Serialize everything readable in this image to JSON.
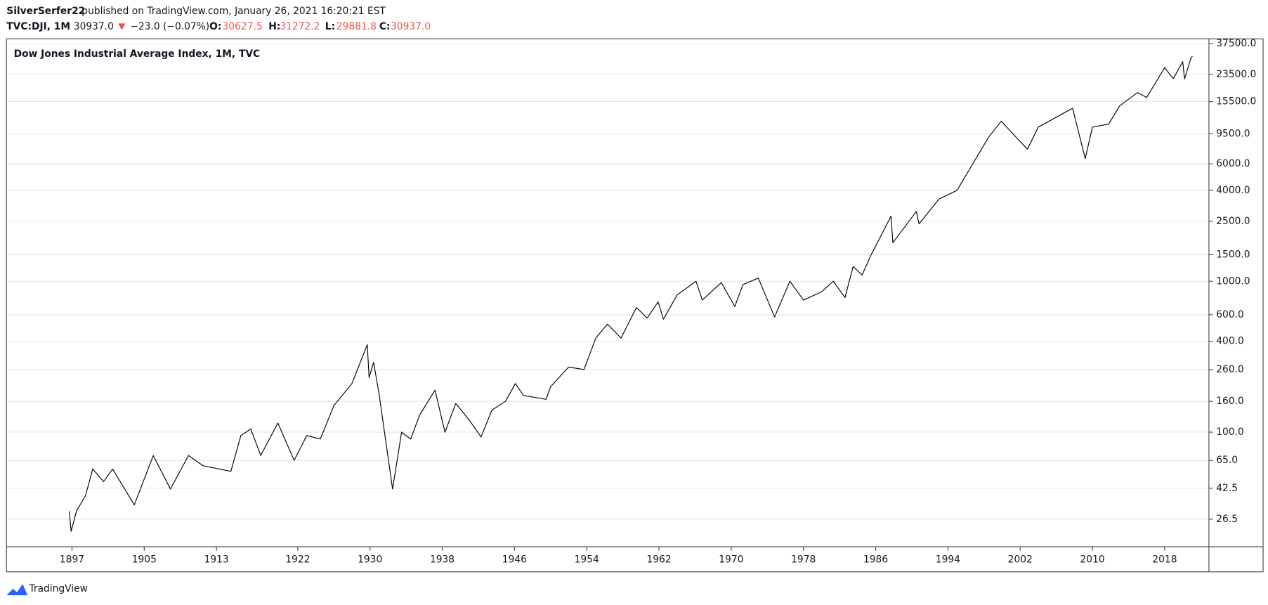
{
  "chart_data": {
    "type": "line",
    "author": "SilverSerfer22",
    "published": "published on TradingView.com, January 26, 2021 16:20:21 EST",
    "symbol": "TVC:DJI, 1M",
    "last": "30937.0",
    "change": "−23.0 (−0.07%)",
    "open_label": "O:",
    "open": "30627.5",
    "high_label": "H:",
    "high": "31272.2",
    "low_label": "L:",
    "low": "29881.8",
    "close_label": "C:",
    "close": "30937.0",
    "title": "Dow Jones Industrial Average Index, 1M, TVC",
    "brand": "TradingView",
    "color": "#000000",
    "log_scale": true,
    "grid": true,
    "x": [
      1896.7,
      1896.9,
      1897.5,
      1898.5,
      1899.3,
      1900.5,
      1901.5,
      1903.9,
      1906.0,
      1907.9,
      1909.9,
      1911.5,
      1914.6,
      1915.7,
      1916.8,
      1917.9,
      1919.8,
      1921.6,
      1923.0,
      1924.5,
      1926.0,
      1928.0,
      1929.7,
      1929.9,
      1930.4,
      1931.0,
      1932.5,
      1933.5,
      1934.5,
      1935.5,
      1937.2,
      1938.3,
      1939.5,
      1941.0,
      1942.3,
      1943.5,
      1945.0,
      1946.1,
      1947.0,
      1949.5,
      1950.0,
      1952.0,
      1953.7,
      1955.0,
      1956.3,
      1957.8,
      1959.5,
      1960.7,
      1961.9,
      1962.5,
      1964.0,
      1966.1,
      1966.8,
      1968.9,
      1970.4,
      1971.3,
      1973.0,
      1974.8,
      1976.5,
      1978.0,
      1980.0,
      1981.3,
      1982.6,
      1983.5,
      1984.5,
      1985.5,
      1987.7,
      1987.9,
      1990.5,
      1990.8,
      1993.0,
      1995.0,
      1998.5,
      1999.9,
      2001.7,
      2002.8,
      2004.0,
      2007.8,
      2009.2,
      2010.0,
      2011.8,
      2013.0,
      2015.0,
      2016.0,
      2018.0,
      2018.95,
      2020.0,
      2020.2,
      2020.9,
      2021.07
    ],
    "values": [
      30,
      22,
      30,
      38,
      57,
      47,
      57,
      33,
      70,
      42,
      70,
      60,
      55,
      95,
      105,
      70,
      115,
      65,
      95,
      90,
      150,
      210,
      380,
      230,
      290,
      180,
      42,
      100,
      90,
      130,
      190,
      100,
      155,
      120,
      93,
      140,
      160,
      210,
      175,
      165,
      200,
      270,
      260,
      420,
      520,
      420,
      670,
      570,
      730,
      560,
      810,
      1000,
      750,
      980,
      680,
      950,
      1050,
      580,
      1000,
      750,
      850,
      1000,
      780,
      1250,
      1100,
      1500,
      2700,
      1800,
      2900,
      2400,
      3500,
      4000,
      9000,
      11500,
      8800,
      7500,
      10500,
      14000,
      6500,
      10500,
      11000,
      14500,
      17800,
      16500,
      26000,
      22000,
      28500,
      21900,
      30000,
      30937
    ],
    "xlim": [
      1889.75,
      2022.9
    ],
    "xticks": [
      1897,
      1905,
      1913,
      1922,
      1930,
      1938,
      1946,
      1954,
      1962,
      1970,
      1978,
      1986,
      1994,
      2002,
      2010,
      2018
    ],
    "ylim": [
      17.4,
      40400
    ],
    "yticks": [
      26.5,
      42.5,
      {
        "value": 65,
        "label": "65.0"
      },
      {
        "value": 100,
        "label": "100.0"
      },
      {
        "value": 160,
        "label": "160.0"
      },
      {
        "value": 260,
        "label": "260.0"
      },
      {
        "value": 400,
        "label": "400.0"
      },
      {
        "value": 600,
        "label": "600.0"
      },
      {
        "value": 1000,
        "label": "1000.0"
      },
      {
        "value": 1500,
        "label": "1500.0"
      },
      {
        "value": 2500,
        "label": "2500.0"
      },
      {
        "value": 4000,
        "label": "4000.0"
      },
      {
        "value": 6000,
        "label": "6000.0"
      },
      {
        "value": 9500,
        "label": "9500.0"
      },
      {
        "value": 15500,
        "label": "15500.0"
      },
      {
        "value": 23500,
        "label": "23500.0"
      },
      {
        "value": 37500,
        "label": "37500.0"
      }
    ]
  }
}
